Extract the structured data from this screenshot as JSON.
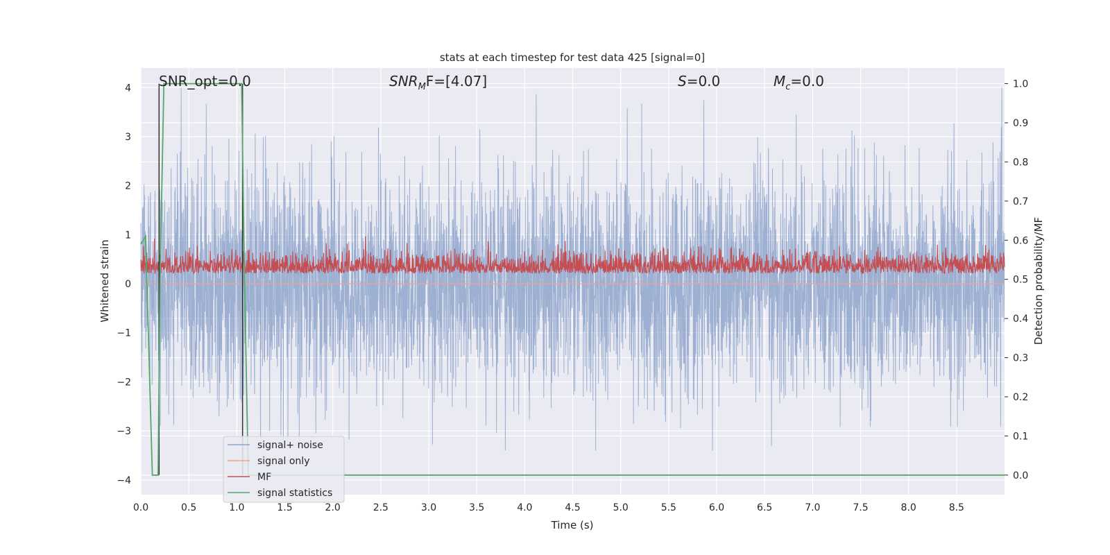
{
  "chart_data": {
    "type": "line",
    "title": "stats at each timestep for test data 425 [signal=0]",
    "xlabel": "Time (s)",
    "ylabel": "Whitened strain",
    "ylabel_right": "Detection probability/MF",
    "xlim": [
      0,
      9.0
    ],
    "ylim": [
      -4.3,
      4.4
    ],
    "ylim_right": [
      -0.05,
      1.04
    ],
    "xticks": [
      "0.0",
      "0.5",
      "1.0",
      "1.5",
      "2.0",
      "2.5",
      "3.0",
      "3.5",
      "4.0",
      "4.5",
      "5.0",
      "5.5",
      "6.0",
      "6.5",
      "7.0",
      "7.5",
      "8.0",
      "8.5"
    ],
    "yticks_left": [
      "−4",
      "−3",
      "−2",
      "−1",
      "0",
      "1",
      "2",
      "3",
      "4"
    ],
    "yticks_right": [
      "0.0",
      "0.1",
      "0.2",
      "0.3",
      "0.4",
      "0.5",
      "0.6",
      "0.7",
      "0.8",
      "0.9",
      "1.0"
    ],
    "grid": true,
    "legend_position": "lower-left",
    "annotations": {
      "snr_opt": "SNR_opt=0.0",
      "snr_mf_sym": "SNR",
      "snr_mf_sub": "M",
      "snr_mf_rest": "F=[4.07]",
      "s_sym": "S",
      "s_rest": "=0.0",
      "mc_sym": "M",
      "mc_sub": "c",
      "mc_rest": "=0.0"
    },
    "series": [
      {
        "name": "signal+ noise",
        "color": "#8fa6cc",
        "axis": "left",
        "description_range": [
          -3.4,
          4.0
        ]
      },
      {
        "name": "signal only",
        "color": "#eaa58a",
        "axis": "left",
        "values_constant": 0.0
      },
      {
        "name": "MF",
        "color": "#c44e52",
        "axis": "right",
        "description_range": [
          0.5,
          0.62
        ]
      },
      {
        "name": "signal statistics",
        "color": "#55a868",
        "axis": "right",
        "x": [
          0.0,
          0.05,
          0.12,
          0.18,
          0.2,
          0.24,
          1.0,
          1.05,
          1.08,
          1.12,
          1.2,
          2.0,
          9.0
        ],
        "y": [
          0.59,
          0.61,
          0.0,
          0.0,
          0.5,
          1.0,
          1.0,
          1.0,
          0.5,
          0.0,
          0.0,
          0.0,
          0.0
        ]
      }
    ],
    "vlines": [
      {
        "x": 0.19,
        "y0": 0.0,
        "y1": 1.0,
        "color": "#333333"
      },
      {
        "x": 1.06,
        "y0": 0.0,
        "y1": 1.0,
        "color": "#333333"
      }
    ]
  }
}
